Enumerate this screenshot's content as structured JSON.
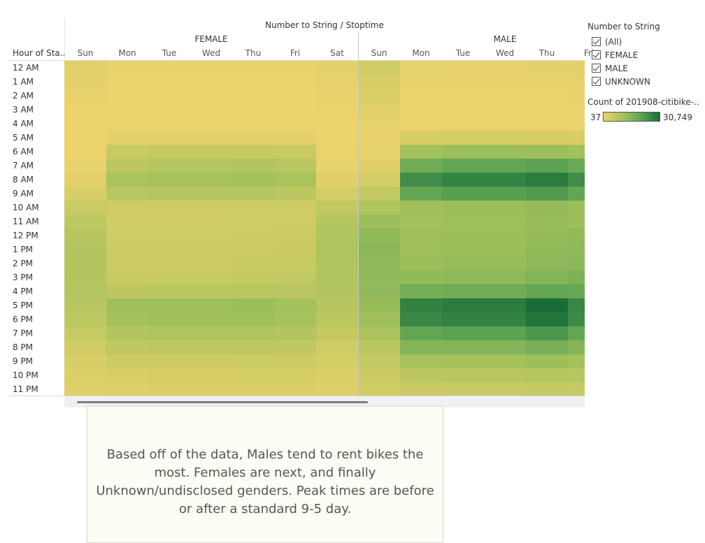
{
  "chart_data": {
    "type": "heatmap",
    "title": "Number to String / Stoptime",
    "row_header": "Hour of Sta..",
    "rows": [
      "12 AM",
      "1 AM",
      "2 AM",
      "3 AM",
      "4 AM",
      "5 AM",
      "6 AM",
      "7 AM",
      "8 AM",
      "9 AM",
      "10 AM",
      "11 AM",
      "12 PM",
      "1 PM",
      "2 PM",
      "3 PM",
      "4 PM",
      "5 PM",
      "6 PM",
      "7 PM",
      "8 PM",
      "9 PM",
      "10 PM",
      "11 PM"
    ],
    "column_groups": [
      {
        "name": "FEMALE",
        "days": [
          "Sun",
          "Mon",
          "Tue",
          "Wed",
          "Thu",
          "Fri",
          "Sat"
        ]
      },
      {
        "name": "MALE",
        "days": [
          "Sun",
          "Mon",
          "Tue",
          "Wed",
          "Thu",
          "Fri"
        ]
      }
    ],
    "color_scale": {
      "min": 37,
      "max": 30749,
      "min_label": "37",
      "max_label": "30,749",
      "title": "Count of 201908-citibike-..",
      "colors": [
        "#eed36c",
        "#a9c35c",
        "#5ea554",
        "#1a6d38"
      ]
    },
    "values": [
      [
        1800,
        600,
        600,
        600,
        600,
        700,
        1500,
        4500,
        1200,
        1100,
        1100,
        1300,
        1500
      ],
      [
        1300,
        300,
        300,
        300,
        300,
        400,
        1100,
        3500,
        800,
        700,
        700,
        800,
        1000
      ],
      [
        900,
        200,
        200,
        200,
        200,
        200,
        800,
        2800,
        500,
        400,
        400,
        500,
        700
      ],
      [
        500,
        150,
        150,
        150,
        150,
        150,
        500,
        1800,
        400,
        300,
        300,
        300,
        400
      ],
      [
        300,
        200,
        200,
        200,
        200,
        200,
        350,
        1100,
        400,
        400,
        400,
        400,
        500
      ],
      [
        300,
        1500,
        1500,
        1500,
        1500,
        1400,
        300,
        800,
        3500,
        3700,
        3700,
        3600,
        3500
      ],
      [
        500,
        5500,
        6000,
        6000,
        5800,
        5500,
        500,
        1100,
        11000,
        12000,
        12000,
        11800,
        11000
      ],
      [
        900,
        7500,
        8500,
        8500,
        9000,
        8000,
        900,
        2000,
        18000,
        20000,
        20000,
        21000,
        19000
      ],
      [
        1800,
        10000,
        10500,
        10500,
        11000,
        10000,
        1900,
        3800,
        25000,
        26500,
        26500,
        28000,
        25000
      ],
      [
        3500,
        8000,
        8500,
        8500,
        8200,
        7500,
        3800,
        6500,
        20000,
        21500,
        21500,
        22500,
        20000
      ],
      [
        5500,
        4500,
        4600,
        4600,
        4700,
        4600,
        6500,
        9500,
        11500,
        12000,
        12000,
        13000,
        12000
      ],
      [
        7200,
        4300,
        4400,
        4400,
        4500,
        4600,
        8500,
        12000,
        11000,
        11500,
        11500,
        12500,
        12000
      ],
      [
        8200,
        4700,
        4800,
        4800,
        5000,
        5200,
        9300,
        13500,
        11500,
        12000,
        12000,
        13000,
        13500
      ],
      [
        9000,
        5000,
        5100,
        5100,
        5400,
        5500,
        9500,
        14200,
        11500,
        12000,
        12000,
        13500,
        14000
      ],
      [
        9000,
        5200,
        5300,
        5300,
        5700,
        5800,
        9400,
        14000,
        12000,
        12500,
        12500,
        14000,
        14500
      ],
      [
        8800,
        5800,
        5900,
        5900,
        6300,
        6500,
        9200,
        13700,
        13500,
        14000,
        14000,
        15500,
        16000
      ],
      [
        8600,
        7500,
        7600,
        7600,
        8000,
        7800,
        8800,
        13300,
        17500,
        18000,
        18000,
        20000,
        19500
      ],
      [
        8000,
        11500,
        11800,
        11800,
        12000,
        11000,
        8200,
        12500,
        27000,
        28000,
        28000,
        30749,
        26000
      ],
      [
        7200,
        11000,
        11300,
        11300,
        11500,
        10500,
        7500,
        11500,
        26000,
        27000,
        27000,
        29500,
        25500
      ],
      [
        6000,
        9000,
        9200,
        9200,
        9400,
        8800,
        6300,
        10000,
        20000,
        21000,
        21000,
        23000,
        20000
      ],
      [
        4500,
        7000,
        7100,
        7100,
        7300,
        6800,
        4800,
        8000,
        15000,
        15500,
        15500,
        17000,
        15000
      ],
      [
        3500,
        5000,
        5100,
        5100,
        5300,
        5000,
        3700,
        6500,
        10500,
        11000,
        11000,
        12000,
        11000
      ],
      [
        2800,
        3500,
        3600,
        3600,
        3800,
        3700,
        2900,
        5500,
        7500,
        8000,
        8000,
        8500,
        8000
      ],
      [
        2200,
        2400,
        2500,
        2500,
        2700,
        2600,
        2300,
        4500,
        5500,
        5800,
        5800,
        6200,
        6000
      ]
    ]
  },
  "legend": {
    "title": "Number to String",
    "items": [
      {
        "label": "(All)",
        "checked": true
      },
      {
        "label": "FEMALE",
        "checked": true
      },
      {
        "label": "MALE",
        "checked": true
      },
      {
        "label": "UNKNOWN",
        "checked": true
      }
    ]
  },
  "note": {
    "text": "Based off of the data, Males tend to rent bikes the most. Females are next, and finally Unknown/undisclosed genders. Peak times are before or after a standard 9-5 day."
  }
}
